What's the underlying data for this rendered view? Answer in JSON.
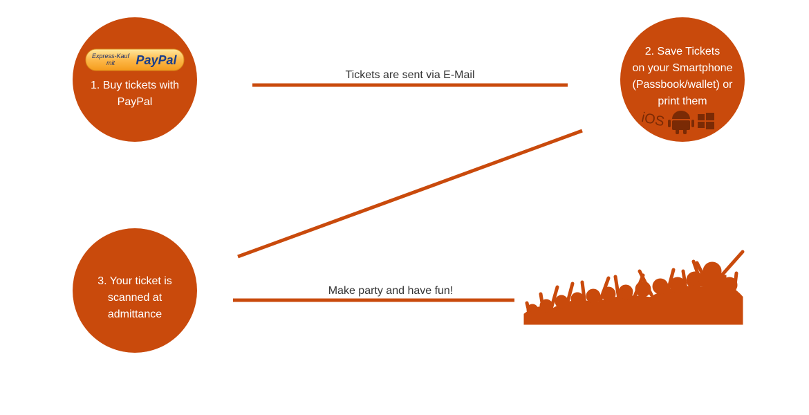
{
  "nodes": [
    {
      "lines": [
        "1. Buy tickets with",
        "PayPal"
      ],
      "badge": {
        "top": "Express-Kauf",
        "bottom": "mit",
        "brand": "PayPal"
      }
    },
    {
      "lines": [
        "2. Save Tickets",
        "on your Smartphone",
        "(Passbook/wallet) or",
        "print them"
      ],
      "platform": "iOS"
    },
    {
      "lines": [
        "3. Your ticket is",
        "scanned at",
        "admittance"
      ]
    }
  ],
  "edges": [
    {
      "label": "Tickets are sent via E-Mail"
    },
    {
      "label": "Make party and have fun!"
    }
  ]
}
